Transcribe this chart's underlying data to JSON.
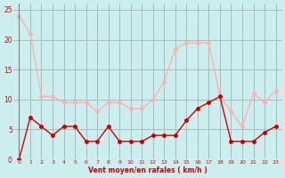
{
  "x": [
    0,
    1,
    2,
    3,
    4,
    5,
    6,
    7,
    8,
    9,
    10,
    11,
    12,
    13,
    14,
    15,
    16,
    17,
    18,
    19,
    20,
    21,
    22,
    23
  ],
  "rafales": [
    24,
    21,
    10.5,
    10.5,
    9.5,
    9.5,
    9.5,
    8.0,
    9.5,
    9.5,
    8.5,
    8.5,
    10.0,
    13.0,
    18.5,
    19.5,
    19.5,
    19.5,
    10.5,
    8.0,
    5.5,
    11.0,
    9.5,
    11.5
  ],
  "vent_moyen": [
    0,
    7,
    5.5,
    4.0,
    5.5,
    5.5,
    3.0,
    3.0,
    5.5,
    3.0,
    3.0,
    3.0,
    4.0,
    4.0,
    4.0,
    6.5,
    8.5,
    9.5,
    10.5,
    3.0,
    3.0,
    3.0,
    4.5,
    5.5
  ],
  "color_rafales": "#FFB0B0",
  "color_vent": "#CC0000",
  "bg_color": "#CCEEEE",
  "grid_color": "#AABBBB",
  "xlabel": "Vent moyen/en rafales ( km/h )",
  "yticks": [
    0,
    5,
    10,
    15,
    20,
    25
  ],
  "ylim": [
    0,
    26
  ],
  "xlim": [
    -0.5,
    23.5
  ]
}
